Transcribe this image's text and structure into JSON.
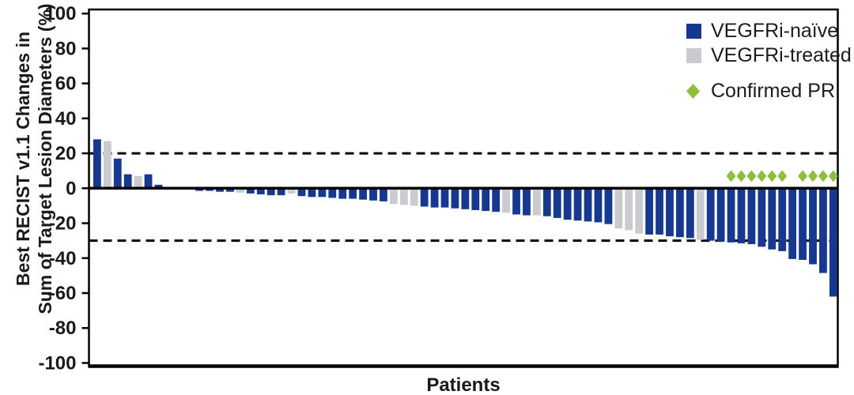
{
  "chart_data": {
    "type": "bar",
    "subtype": "waterfall",
    "title": "",
    "xlabel": "Patients",
    "ylabel_lines": [
      "Best RECIST v1.1 Changes in",
      "Sum of Target Lesion Diameters (%)"
    ],
    "ylim": [
      -100,
      100
    ],
    "yticks": [
      100,
      80,
      60,
      40,
      20,
      0,
      -20,
      -40,
      -60,
      -80,
      -100
    ],
    "reference_lines": {
      "upper": 20,
      "lower": -30
    },
    "grid": false,
    "legend_position": "top-right-inside",
    "legend": [
      {
        "label": "VEGFRi-naïve",
        "marker": "square",
        "color": "#16388e"
      },
      {
        "label": "VEGFRi-treated",
        "marker": "square",
        "color": "#c9cbce"
      },
      {
        "label": "Confirmed PR",
        "marker": "diamond",
        "color": "#8dbe3e"
      }
    ],
    "colors": {
      "naive": "#16388e",
      "treated": "#c9cbce",
      "confirmed_pr": "#8dbe3e",
      "axis": "#000000",
      "background": "#ffffff"
    },
    "values": [
      28,
      27,
      17,
      8,
      7,
      8,
      2,
      0,
      0,
      0,
      -1.5,
      -1.5,
      -2,
      -2,
      -2.5,
      -3,
      -3.5,
      -4,
      -4,
      -3,
      -4.5,
      -5,
      -5,
      -5.5,
      -6,
      -6,
      -6.5,
      -7,
      -7.5,
      -9,
      -9.5,
      -10,
      -10.5,
      -11,
      -11,
      -11.5,
      -12,
      -12.5,
      -13,
      -13.5,
      -14,
      -15,
      -15.5,
      -15.5,
      -16,
      -17,
      -18,
      -18.5,
      -19,
      -19.5,
      -20.5,
      -23,
      -24,
      -26,
      -26.5,
      -26.5,
      -27.5,
      -28,
      -28.5,
      -29.5,
      -30,
      -30.5,
      -31,
      -31.5,
      -32,
      -33.5,
      -35,
      -36,
      -40.5,
      -41,
      -43.5,
      -48.5,
      -62
    ],
    "treated_indices": [
      1,
      4,
      14,
      19,
      29,
      30,
      31,
      40,
      43,
      51,
      52,
      53,
      59
    ],
    "confirmed_pr_indices": [
      62,
      63,
      64,
      65,
      66,
      67,
      69,
      70,
      71,
      72
    ],
    "confirmed_pr_marker_y_value": 7
  }
}
